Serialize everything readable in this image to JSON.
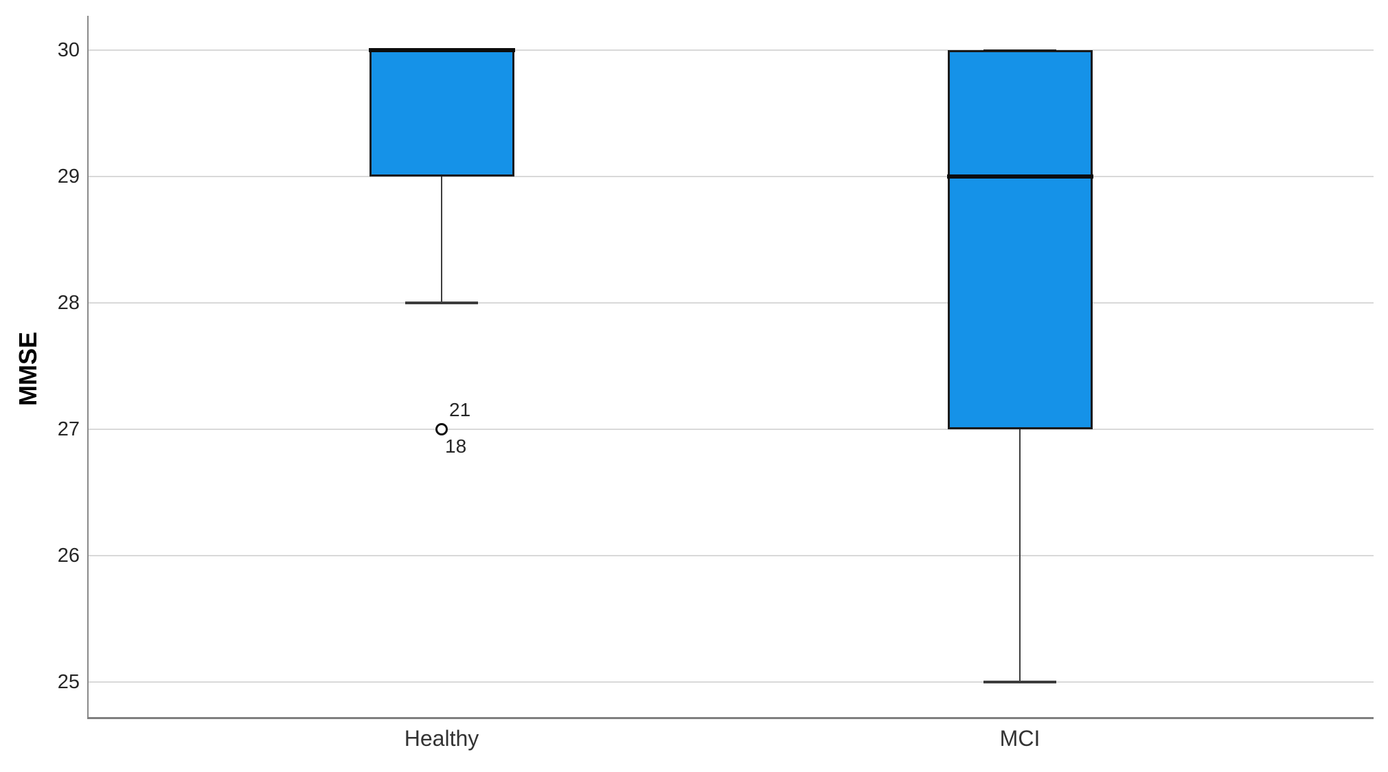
{
  "chart_data": {
    "type": "boxplot",
    "title": "",
    "xlabel": "",
    "ylabel": "MMSE",
    "ylim": [
      24.5,
      30.5
    ],
    "yticks": [
      30,
      29,
      28,
      27,
      26,
      25
    ],
    "grid": true,
    "legend": "none",
    "categories": [
      "Healthy",
      "MCI"
    ],
    "series": [
      {
        "category": "Healthy",
        "whisker_low": 28,
        "q1": 29,
        "median": 30,
        "q3": 30,
        "whisker_high": 30,
        "outliers": [
          {
            "value": 27,
            "case_labels": [
              "21",
              "18"
            ]
          }
        ]
      },
      {
        "category": "MCI",
        "whisker_low": 25,
        "q1": 27,
        "median": 29,
        "q3": 30,
        "whisker_high": 30,
        "outliers": []
      }
    ],
    "colors": {
      "box_fill": "#1592E8",
      "box_border": "#1a1a1a",
      "median_line": "#0d0d0d",
      "whisker": "#3d3d3d",
      "gridline": "#d9d9d9",
      "y_axis": "#8a8a8a",
      "x_axis": "#7f7f7f",
      "tick_text": "#262626"
    }
  }
}
